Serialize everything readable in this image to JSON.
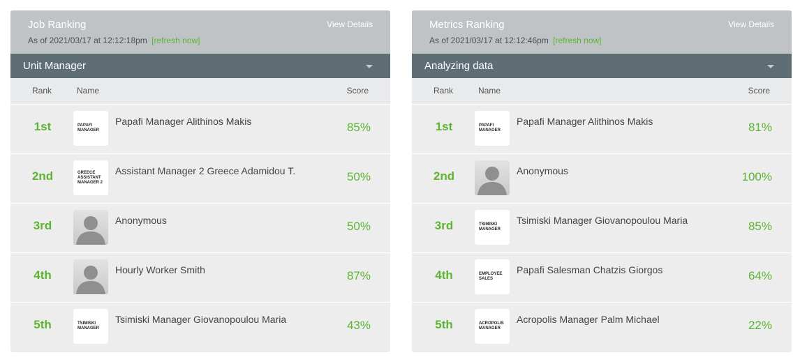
{
  "panels": [
    {
      "title": "Job Ranking",
      "as_of": "As of 2021/03/17 at 12:12:18pm",
      "refresh": "[refresh now]",
      "view_details": "View Details",
      "selector": "Unit Manager",
      "columns": {
        "rank": "Rank",
        "name": "Name",
        "score": "Score"
      },
      "rows": [
        {
          "rank": "1st",
          "logo_text": "PAPAFI MANAGER",
          "name": "Papafi Manager Alithinos Makis",
          "score": "85%"
        },
        {
          "rank": "2nd",
          "logo_text": "GREECE ASSISTANT MANAGER 2",
          "name": "Assistant Manager 2 Greece Adamidou T.",
          "score": "50%"
        },
        {
          "rank": "3rd",
          "logo_text": "",
          "name": "Anonymous",
          "score": "50%"
        },
        {
          "rank": "4th",
          "logo_text": "",
          "name": "Hourly Worker Smith",
          "score": "87%"
        },
        {
          "rank": "5th",
          "logo_text": "TSIMISKI MANAGER",
          "name": "Tsimiski Manager Giovanopoulou Maria",
          "score": "43%"
        }
      ]
    },
    {
      "title": "Metrics Ranking",
      "as_of": "As of 2021/03/17 at 12:12:46pm",
      "refresh": "[refresh now]",
      "view_details": "View Details",
      "selector": "Analyzing data",
      "columns": {
        "rank": "Rank",
        "name": "Name",
        "score": "Score"
      },
      "rows": [
        {
          "rank": "1st",
          "logo_text": "PAPAFI MANAGER",
          "name": "Papafi Manager Alithinos Makis",
          "score": "81%"
        },
        {
          "rank": "2nd",
          "logo_text": "",
          "name": "Anonymous",
          "score": "100%"
        },
        {
          "rank": "3rd",
          "logo_text": "TSIMISKI MANAGER",
          "name": "Tsimiski Manager Giovanopoulou Maria",
          "score": "85%"
        },
        {
          "rank": "4th",
          "logo_text": "EMPLOYEE SALES",
          "name": "Papafi Salesman Chatzis Giorgos",
          "score": "64%"
        },
        {
          "rank": "5th",
          "logo_text": "ACROPOLIS MANAGER",
          "name": "Acropolis Manager Palm Michael",
          "score": "22%"
        }
      ]
    }
  ]
}
